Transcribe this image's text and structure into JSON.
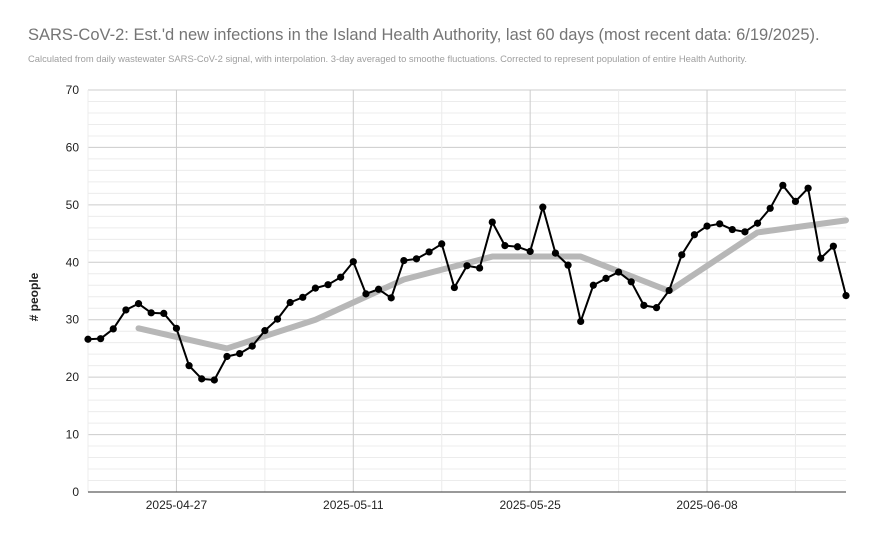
{
  "chart_data": {
    "type": "line",
    "title": "SARS-CoV-2: Est.'d new infections in the Island Health Authority, last 60 days (most recent data: 6/19/2025).",
    "subtitle": "Calculated from daily wastewater SARS-CoV-2 signal, with interpolation. 3-day averaged to smoothe fluctuations. Corrected to represent population of entire Health Authority.",
    "xlabel": "",
    "ylabel": "# people",
    "ylim": [
      0,
      70
    ],
    "yticks": [
      0,
      10,
      20,
      30,
      40,
      50,
      60,
      70
    ],
    "xlim": [
      "2025-04-20",
      "2025-06-19"
    ],
    "xticks": [
      "2025-04-27",
      "2025-05-11",
      "2025-05-25",
      "2025-06-08"
    ],
    "grid": true,
    "legend": "none",
    "series": [
      {
        "color": "#000000",
        "points": [
          [
            "2025-04-20",
            26.6
          ],
          [
            "2025-04-21",
            26.7
          ],
          [
            "2025-04-22",
            28.4
          ],
          [
            "2025-04-23",
            31.7
          ],
          [
            "2025-04-24",
            32.8
          ],
          [
            "2025-04-25",
            31.2
          ],
          [
            "2025-04-26",
            31.1
          ],
          [
            "2025-04-27",
            28.5
          ],
          [
            "2025-04-28",
            22.0
          ],
          [
            "2025-04-29",
            19.7
          ],
          [
            "2025-04-30",
            19.5
          ],
          [
            "2025-05-01",
            23.6
          ],
          [
            "2025-05-02",
            24.1
          ],
          [
            "2025-05-03",
            25.4
          ],
          [
            "2025-05-04",
            28.1
          ],
          [
            "2025-05-05",
            30.1
          ],
          [
            "2025-05-06",
            33.0
          ],
          [
            "2025-05-07",
            33.9
          ],
          [
            "2025-05-08",
            35.5
          ],
          [
            "2025-05-09",
            36.1
          ],
          [
            "2025-05-10",
            37.4
          ],
          [
            "2025-05-11",
            40.1
          ],
          [
            "2025-05-12",
            34.5
          ],
          [
            "2025-05-13",
            35.3
          ],
          [
            "2025-05-14",
            33.8
          ],
          [
            "2025-05-15",
            40.3
          ],
          [
            "2025-05-16",
            40.6
          ],
          [
            "2025-05-17",
            41.8
          ],
          [
            "2025-05-18",
            43.2
          ],
          [
            "2025-05-19",
            35.6
          ],
          [
            "2025-05-20",
            39.4
          ],
          [
            "2025-05-21",
            39.0
          ],
          [
            "2025-05-22",
            47.0
          ],
          [
            "2025-05-23",
            42.9
          ],
          [
            "2025-05-24",
            42.7
          ],
          [
            "2025-05-25",
            41.9
          ],
          [
            "2025-05-26",
            49.6
          ],
          [
            "2025-05-27",
            41.6
          ],
          [
            "2025-05-28",
            39.5
          ],
          [
            "2025-05-29",
            29.7
          ],
          [
            "2025-05-30",
            36.0
          ],
          [
            "2025-05-31",
            37.2
          ],
          [
            "2025-06-01",
            38.3
          ],
          [
            "2025-06-02",
            36.6
          ],
          [
            "2025-06-03",
            32.5
          ],
          [
            "2025-06-04",
            32.1
          ],
          [
            "2025-06-05",
            35.1
          ],
          [
            "2025-06-06",
            41.3
          ],
          [
            "2025-06-07",
            44.8
          ],
          [
            "2025-06-08",
            46.3
          ],
          [
            "2025-06-09",
            46.7
          ],
          [
            "2025-06-10",
            45.7
          ],
          [
            "2025-06-11",
            45.3
          ],
          [
            "2025-06-12",
            46.8
          ],
          [
            "2025-06-13",
            49.4
          ],
          [
            "2025-06-14",
            53.4
          ],
          [
            "2025-06-15",
            50.6
          ],
          [
            "2025-06-16",
            52.9
          ],
          [
            "2025-06-17",
            40.7
          ],
          [
            "2025-06-18",
            42.8
          ],
          [
            "2025-06-19",
            34.2
          ]
        ]
      },
      {
        "color": "#b7b7b7",
        "points": [
          [
            "2025-04-24",
            28.5
          ],
          [
            "2025-05-01",
            25.0
          ],
          [
            "2025-05-08",
            30.0
          ],
          [
            "2025-05-15",
            37.0
          ],
          [
            "2025-05-22",
            41.0
          ],
          [
            "2025-05-29",
            41.0
          ],
          [
            "2025-06-05",
            35.0
          ],
          [
            "2025-06-12",
            45.2
          ],
          [
            "2025-06-19",
            47.3
          ]
        ]
      }
    ]
  }
}
